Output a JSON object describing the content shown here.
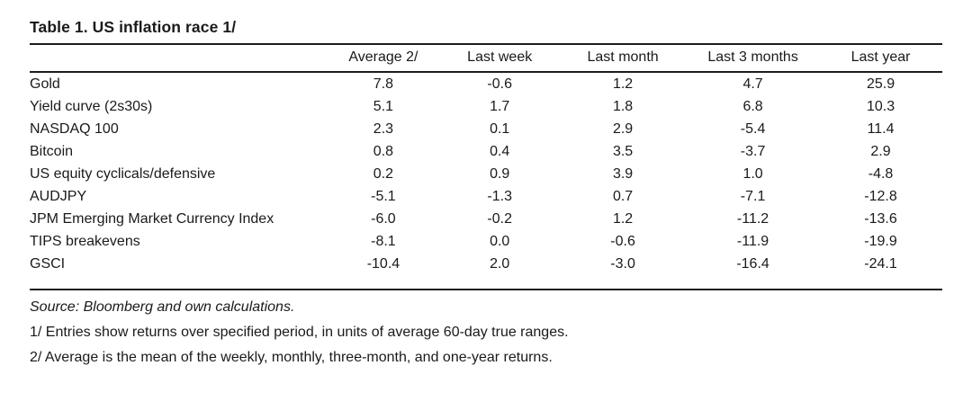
{
  "title": "Table 1. US inflation race 1/",
  "table": {
    "columns": [
      "Average 2/",
      "Last week",
      "Last month",
      "Last 3 months",
      "Last year"
    ],
    "rows": [
      {
        "label": "Gold",
        "values": [
          "7.8",
          "-0.6",
          "1.2",
          "4.7",
          "25.9"
        ]
      },
      {
        "label": "Yield curve (2s30s)",
        "values": [
          "5.1",
          "1.7",
          "1.8",
          "6.8",
          "10.3"
        ]
      },
      {
        "label": "NASDAQ 100",
        "values": [
          "2.3",
          "0.1",
          "2.9",
          "-5.4",
          "11.4"
        ]
      },
      {
        "label": "Bitcoin",
        "values": [
          "0.8",
          "0.4",
          "3.5",
          "-3.7",
          "2.9"
        ]
      },
      {
        "label": "US equity cyclicals/defensive",
        "values": [
          "0.2",
          "0.9",
          "3.9",
          "1.0",
          "-4.8"
        ]
      },
      {
        "label": "AUDJPY",
        "values": [
          "-5.1",
          "-1.3",
          "0.7",
          "-7.1",
          "-12.8"
        ]
      },
      {
        "label": "JPM Emerging Market Currency Index",
        "values": [
          "-6.0",
          "-0.2",
          "1.2",
          "-11.2",
          "-13.6"
        ]
      },
      {
        "label": "TIPS breakevens",
        "values": [
          "-8.1",
          "0.0",
          "-0.6",
          "-11.9",
          "-19.9"
        ]
      },
      {
        "label": "GSCI",
        "values": [
          "-10.4",
          "2.0",
          "-3.0",
          "-16.4",
          "-24.1"
        ]
      }
    ]
  },
  "footer": {
    "source": "Source: Bloomberg and own calculations.",
    "footnote_1": "1/ Entries show returns over specified period, in units of average 60-day true ranges.",
    "footnote_2": "2/ Average is the mean of the weekly, monthly, three-month, and one-year returns."
  },
  "colors": {
    "text": "#1a1a1a",
    "rule": "#1c1c1c",
    "background": "#ffffff"
  }
}
